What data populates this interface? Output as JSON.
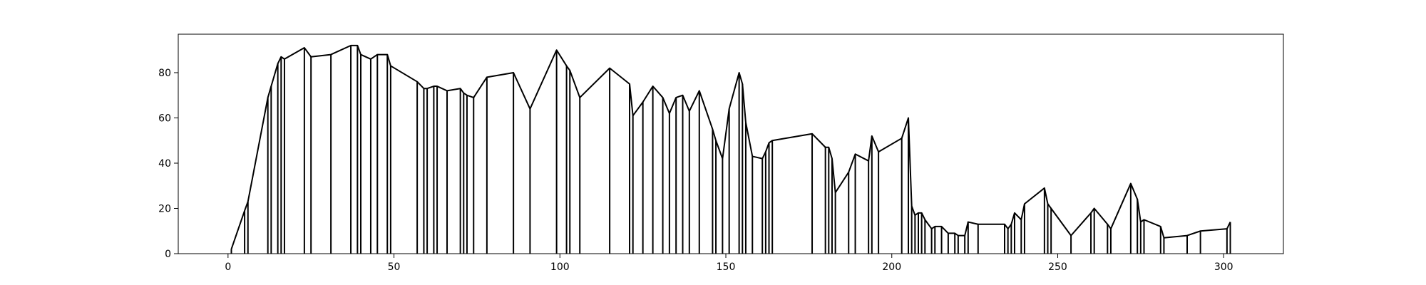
{
  "chart_data": {
    "type": "line",
    "title": "",
    "xlabel": "",
    "ylabel": "",
    "xlim": [
      -15,
      318
    ],
    "ylim": [
      0,
      97
    ],
    "xticks": [
      0,
      50,
      100,
      150,
      200,
      250,
      300
    ],
    "yticks": [
      0,
      20,
      40,
      60,
      80
    ],
    "grid": false,
    "line_color": "#000000",
    "drop_lines": true,
    "series": [
      {
        "x": [
          1,
          5,
          6,
          12,
          13,
          15,
          16,
          17,
          23,
          25,
          31,
          37,
          39,
          40,
          43,
          45,
          48,
          49,
          57,
          59,
          60,
          62,
          63,
          66,
          70,
          71,
          72,
          74,
          78,
          86,
          91,
          99,
          102,
          103,
          106,
          115,
          121,
          122,
          125,
          128,
          131,
          133,
          135,
          137,
          139,
          142,
          146,
          147,
          149,
          151,
          154,
          155,
          156,
          158,
          161,
          162,
          163,
          164,
          176,
          180,
          181,
          182,
          183,
          187,
          189,
          193,
          194,
          196,
          203,
          205,
          206,
          207,
          208,
          209,
          210,
          212,
          213,
          215,
          217,
          219,
          220,
          222,
          223,
          226,
          234,
          235,
          236,
          237,
          239,
          240,
          246,
          247,
          248,
          254,
          260,
          261,
          265,
          266,
          272,
          274,
          275,
          276,
          281,
          282,
          289,
          293,
          301,
          302
        ],
        "y": [
          2,
          19,
          23,
          69,
          74,
          84,
          87,
          86,
          91,
          87,
          88,
          92,
          92,
          88,
          86,
          88,
          88,
          83,
          76,
          73,
          73,
          74,
          74,
          72,
          73,
          71,
          70,
          69,
          78,
          80,
          64,
          90,
          83,
          81,
          69,
          82,
          75,
          61,
          67,
          74,
          69,
          62,
          69,
          70,
          63,
          72,
          55,
          50,
          42,
          64,
          80,
          75,
          58,
          43,
          42,
          45,
          49,
          50,
          53,
          47,
          47,
          42,
          27,
          36,
          44,
          41,
          52,
          45,
          51,
          60,
          21,
          17,
          18,
          18,
          15,
          11,
          12,
          12,
          9,
          9,
          8,
          8,
          14,
          13,
          13,
          11,
          13,
          18,
          15,
          22,
          29,
          22,
          20,
          8,
          18,
          20,
          13,
          11,
          31,
          24,
          14,
          15,
          12,
          7,
          8,
          10,
          11,
          14
        ]
      }
    ]
  }
}
